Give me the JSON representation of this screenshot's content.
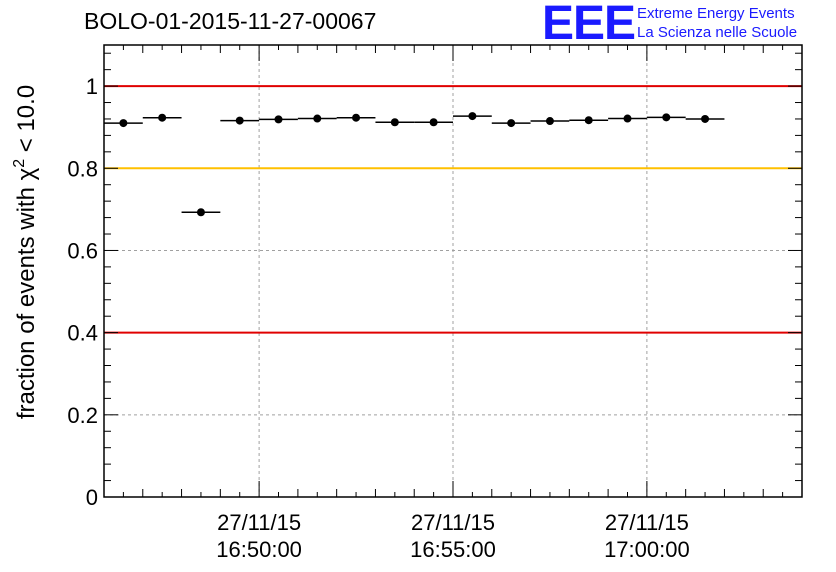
{
  "header": {
    "title": "BOLO-01-2015-11-27-00067"
  },
  "logo": {
    "mark": "EEE",
    "line1": "Extreme Energy Events",
    "line2": "La Scienza nelle Scuole",
    "color": "#1a1aff"
  },
  "chart_data": {
    "type": "scatter",
    "ylabel": "fraction of events with χ² < 10.0",
    "ylabel_parts": {
      "prefix": "fraction of events with ",
      "symbol": "χ",
      "superscript": "2",
      "suffix": " < 10.0"
    },
    "ylim": [
      0,
      1.1
    ],
    "yticks": [
      "0",
      "0.2",
      "0.4",
      "0.6",
      "0.8",
      "1"
    ],
    "xlim": [
      "2015-11-27 16:46:00",
      "2015-11-27 17:04:00"
    ],
    "xticks": [
      {
        "time": "2015-11-27 16:50:00",
        "date_label": "27/11/15",
        "time_label": "16:50:00"
      },
      {
        "time": "2015-11-27 16:55:00",
        "date_label": "27/11/15",
        "time_label": "16:55:00"
      },
      {
        "time": "2015-11-27 17:00:00",
        "date_label": "27/11/15",
        "time_label": "17:00:00"
      }
    ],
    "grid": true,
    "reference_lines": [
      {
        "y": 1.0,
        "color": "#e00000"
      },
      {
        "y": 0.8,
        "color": "#ffc000"
      },
      {
        "y": 0.4,
        "color": "#e00000"
      }
    ],
    "bin_width_s": 60,
    "series": [
      {
        "marker_color": "#000000",
        "points": [
          {
            "x": "2015-11-27 16:46:30",
            "y": 0.91
          },
          {
            "x": "2015-11-27 16:47:30",
            "y": 0.923
          },
          {
            "x": "2015-11-27 16:48:30",
            "y": 0.693
          },
          {
            "x": "2015-11-27 16:49:30",
            "y": 0.916
          },
          {
            "x": "2015-11-27 16:50:30",
            "y": 0.919
          },
          {
            "x": "2015-11-27 16:51:30",
            "y": 0.921
          },
          {
            "x": "2015-11-27 16:52:30",
            "y": 0.923
          },
          {
            "x": "2015-11-27 16:53:30",
            "y": 0.912
          },
          {
            "x": "2015-11-27 16:54:30",
            "y": 0.912
          },
          {
            "x": "2015-11-27 16:55:30",
            "y": 0.927
          },
          {
            "x": "2015-11-27 16:56:30",
            "y": 0.91
          },
          {
            "x": "2015-11-27 16:57:30",
            "y": 0.915
          },
          {
            "x": "2015-11-27 16:58:30",
            "y": 0.917
          },
          {
            "x": "2015-11-27 16:59:30",
            "y": 0.921
          },
          {
            "x": "2015-11-27 17:00:30",
            "y": 0.924
          },
          {
            "x": "2015-11-27 17:01:30",
            "y": 0.92
          }
        ]
      }
    ]
  }
}
